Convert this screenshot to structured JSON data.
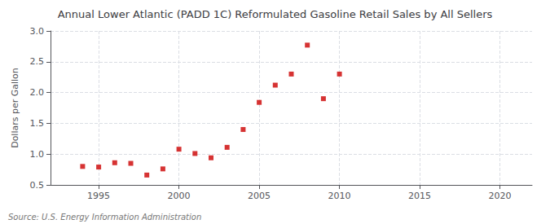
{
  "chart_data": {
    "type": "scatter",
    "title": "Annual Lower Atlantic (PADD 1C) Reformulated Gasoline Retail Sales by All Sellers",
    "ylabel": "Dollars per Gallon",
    "source": "Source: U.S. Energy Information Administration",
    "x": [
      1994,
      1995,
      1996,
      1997,
      1998,
      1999,
      2000,
      2001,
      2002,
      2003,
      2004,
      2005,
      2006,
      2007,
      2008,
      2009,
      2010
    ],
    "values": [
      0.8,
      0.79,
      0.86,
      0.85,
      0.66,
      0.76,
      1.08,
      1.01,
      0.94,
      1.11,
      1.4,
      1.84,
      2.12,
      2.3,
      2.77,
      1.9,
      2.3
    ],
    "color": "#cc0000",
    "marker": "square",
    "xlim": [
      1992,
      2022
    ],
    "xticks": [
      1995,
      2000,
      2005,
      2010,
      2015,
      2020
    ],
    "ylim": [
      0.5,
      3.0
    ],
    "yticks": [
      0.5,
      {
        "value": 1.0,
        "label": "1.0"
      },
      1.5,
      {
        "value": 2.0,
        "label": "2.0"
      },
      2.5,
      {
        "value": 3.0,
        "label": "3.0"
      }
    ],
    "grid": true
  }
}
